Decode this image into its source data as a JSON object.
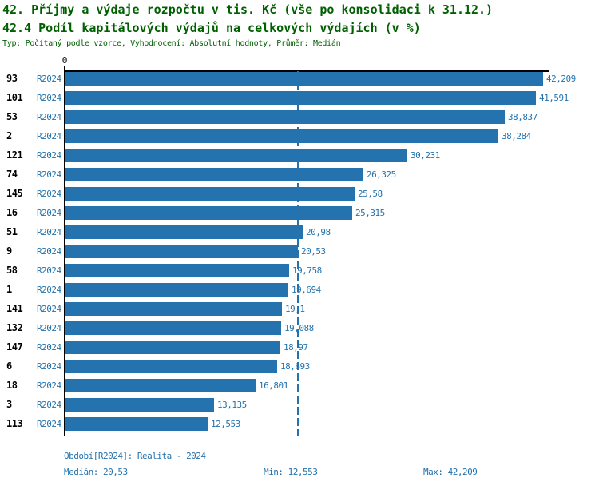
{
  "header": {
    "title_line1": "42. Příjmy a výdaje rozpočtu v tis. Kč (vše po konsolidaci k 31.12.)",
    "title_line2": "42.4 Podíl kapitálových výdajů na celkových výdajích (v %)",
    "subtitle": "Typ: Počítaný podle vzorce, Vyhodnocení: Absolutní hodnoty, Průměr: Medián"
  },
  "chart_data": {
    "type": "bar",
    "orientation": "horizontal",
    "title": "42.4 Podíl kapitálových výdajů na celkových výdajích (v %)",
    "x_axis": {
      "origin_label": "0",
      "min": 0,
      "max": 42.209,
      "grid": false
    },
    "bar_color": "#2473ae",
    "axis_color": "#000000",
    "median_line": {
      "value": 20.53,
      "label": "Medián",
      "style": "dashed",
      "color": "#2473ae"
    },
    "categories": [
      "93",
      "101",
      "53",
      "2",
      "121",
      "74",
      "145",
      "16",
      "51",
      "9",
      "58",
      "1",
      "141",
      "132",
      "147",
      "6",
      "18",
      "3",
      "113"
    ],
    "series": [
      {
        "name": "R2024",
        "values": [
          42.209,
          41.591,
          38.837,
          38.284,
          30.231,
          26.325,
          25.58,
          25.315,
          20.98,
          20.53,
          19.758,
          19.694,
          19.1,
          19.088,
          18.97,
          18.693,
          16.801,
          13.135,
          12.553
        ],
        "value_labels": [
          "42,209",
          "41,591",
          "38,837",
          "38,284",
          "30,231",
          "26,325",
          "25,58",
          "25,315",
          "20,98",
          "20,53",
          "19,758",
          "19,694",
          "19,1",
          "19,088",
          "18,97",
          "18,693",
          "16,801",
          "13,135",
          "12,553"
        ]
      }
    ],
    "rows": [
      {
        "id": "93",
        "period": "R2024",
        "value": 42.209,
        "label": "42,209"
      },
      {
        "id": "101",
        "period": "R2024",
        "value": 41.591,
        "label": "41,591"
      },
      {
        "id": "53",
        "period": "R2024",
        "value": 38.837,
        "label": "38,837"
      },
      {
        "id": "2",
        "period": "R2024",
        "value": 38.284,
        "label": "38,284"
      },
      {
        "id": "121",
        "period": "R2024",
        "value": 30.231,
        "label": "30,231"
      },
      {
        "id": "74",
        "period": "R2024",
        "value": 26.325,
        "label": "26,325"
      },
      {
        "id": "145",
        "period": "R2024",
        "value": 25.58,
        "label": "25,58"
      },
      {
        "id": "16",
        "period": "R2024",
        "value": 25.315,
        "label": "25,315"
      },
      {
        "id": "51",
        "period": "R2024",
        "value": 20.98,
        "label": "20,98"
      },
      {
        "id": "9",
        "period": "R2024",
        "value": 20.53,
        "label": "20,53"
      },
      {
        "id": "58",
        "period": "R2024",
        "value": 19.758,
        "label": "19,758"
      },
      {
        "id": "1",
        "period": "R2024",
        "value": 19.694,
        "label": "19,694"
      },
      {
        "id": "141",
        "period": "R2024",
        "value": 19.1,
        "label": "19,1"
      },
      {
        "id": "132",
        "period": "R2024",
        "value": 19.088,
        "label": "19,088"
      },
      {
        "id": "147",
        "period": "R2024",
        "value": 18.97,
        "label": "18,97"
      },
      {
        "id": "6",
        "period": "R2024",
        "value": 18.693,
        "label": "18,693"
      },
      {
        "id": "18",
        "period": "R2024",
        "value": 16.801,
        "label": "16,801"
      },
      {
        "id": "3",
        "period": "R2024",
        "value": 13.135,
        "label": "13,135"
      },
      {
        "id": "113",
        "period": "R2024",
        "value": 12.553,
        "label": "12,553"
      }
    ]
  },
  "footer": {
    "period_line": "Období[R2024]: Realita - 2024",
    "median_line": "Medián: 20,53",
    "min_line": "Min: 12,553",
    "max_line": "Max: 42,209"
  },
  "colors": {
    "title_green": "#006000",
    "bar_blue": "#2473ae",
    "axis_black": "#000000",
    "background": "#ffffff"
  }
}
